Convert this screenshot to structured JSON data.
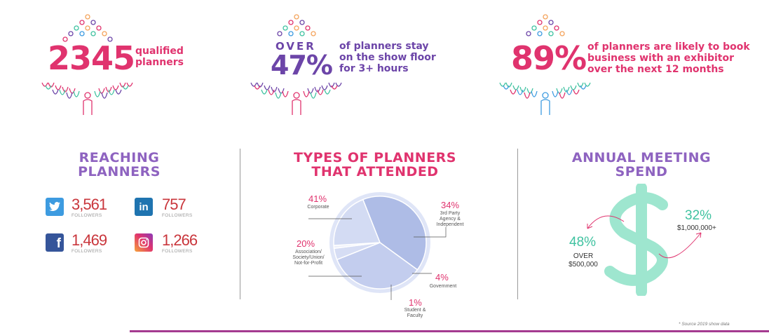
{
  "stats": [
    {
      "number": "2345",
      "text_lines": [
        "qualified",
        "planners"
      ]
    },
    {
      "prefix": "OVER",
      "number": "47%",
      "text_lines": [
        "of planners stay",
        "on the show floor",
        "for 3+ hours"
      ]
    },
    {
      "number": "89%",
      "text_lines": [
        "of planners are likely to book",
        "business with an exhibitor",
        "over the next 12 months"
      ]
    }
  ],
  "reaching": {
    "title_lines": [
      "REACHING",
      "PLANNERS"
    ],
    "items": [
      {
        "icon": "twitter-icon",
        "value": "3,561",
        "label": "FOLLOWERS"
      },
      {
        "icon": "linkedin-icon",
        "value": "757",
        "label": "FOLLOWERS"
      },
      {
        "icon": "facebook-icon",
        "value": "1,469",
        "label": "FOLLOWERS"
      },
      {
        "icon": "instagram-icon",
        "value": "1,266",
        "label": "FOLLOWERS"
      }
    ]
  },
  "types": {
    "title_lines": [
      "TYPES OF PLANNERS",
      "THAT ATTENDED"
    ]
  },
  "chart_data": {
    "type": "pie",
    "slices": [
      {
        "label": "Corporate",
        "value": 41,
        "pct": "41%",
        "label_lines": [
          "Corporate"
        ],
        "color": "#aebce6"
      },
      {
        "label": "3rd Party Agency & Independent",
        "value": 34,
        "pct": "34%",
        "label_lines": [
          "3rd Party",
          "Agency &",
          "Independent"
        ],
        "color": "#c3cdee"
      },
      {
        "label": "Government",
        "value": 4,
        "pct": "4%",
        "label_lines": [
          "Government"
        ],
        "color": "#d6ddf4"
      },
      {
        "label": "Student & Faculty",
        "value": 1,
        "pct": "1%",
        "label_lines": [
          "Student &",
          "Faculty"
        ],
        "color": "#eef1fb"
      },
      {
        "label": "Association/Society/Union/Not-for-Profit",
        "value": 20,
        "pct": "20%",
        "label_lines": [
          "Association/",
          "Society/Union/",
          "Not-for-Profit"
        ],
        "color": "#d3dbf3"
      }
    ]
  },
  "spend": {
    "title_lines": [
      "ANNUAL MEETING",
      "SPEND"
    ],
    "left": {
      "pct": "48%",
      "lines": [
        "OVER",
        "$500,000"
      ]
    },
    "right": {
      "pct": "32%",
      "lines": [
        "$1,000,000+"
      ]
    }
  },
  "source_note": "* Source 2019 show data",
  "colors": {
    "pink": "#e0336e",
    "purple": "#6c45a8",
    "lavender": "#8e63c0",
    "mint": "#3fc2a0",
    "twitter": "#3d9be0",
    "linkedin": "#1f74b0",
    "facebook": "#35559a"
  }
}
